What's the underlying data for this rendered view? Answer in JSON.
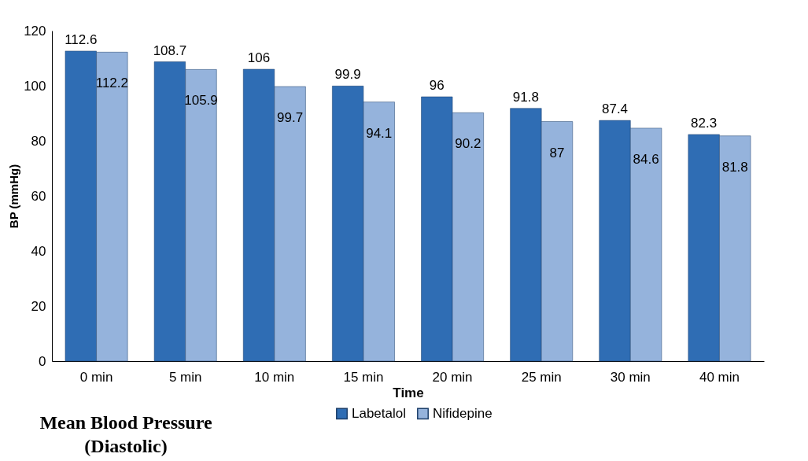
{
  "chart_data": {
    "type": "bar",
    "title": "Mean Blood Pressure (Diastolic)",
    "xlabel": "Time",
    "ylabel": "BP (mmHg)",
    "categories": [
      "0 min",
      "5 min",
      "10 min",
      "15 min",
      "20 min",
      "25 min",
      "30 min",
      "40 min"
    ],
    "series": [
      {
        "name": "Labetalol",
        "color": "#2f6db4",
        "values": [
          112.6,
          108.7,
          106,
          99.9,
          96,
          91.8,
          87.4,
          82.3
        ]
      },
      {
        "name": "Nifidepine",
        "color": "#95b3dc",
        "values": [
          112.2,
          105.9,
          99.7,
          94.1,
          90.2,
          87,
          84.6,
          81.8
        ]
      }
    ],
    "ylim": [
      0,
      120
    ],
    "yticks": [
      0,
      20,
      40,
      60,
      80,
      100,
      120
    ],
    "data_labels": true,
    "legend": "bottom",
    "grid": false
  }
}
